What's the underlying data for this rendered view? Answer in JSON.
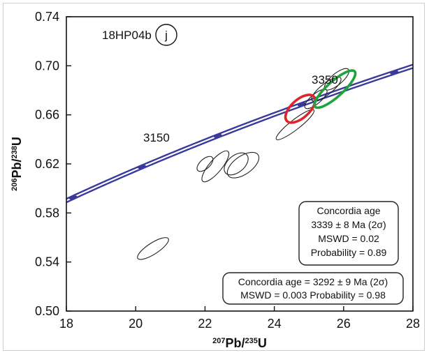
{
  "chart_data": {
    "type": "scatter",
    "sample_label": "18HP04b",
    "panel_letter": "j",
    "xlabel": {
      "sup1": "207",
      "main1": "Pb/",
      "sup2": "235",
      "main2": "U"
    },
    "ylabel": {
      "sup1": "206",
      "main1": "Pb/",
      "sup2": "238",
      "main2": "U"
    },
    "xlim": [
      18,
      28
    ],
    "ylim": [
      0.5,
      0.74
    ],
    "x_ticks": [
      "18",
      "20",
      "22",
      "24",
      "26",
      "28"
    ],
    "y_ticks": [
      "0.50",
      "0.54",
      "0.58",
      "0.62",
      "0.66",
      "0.70",
      "0.74"
    ],
    "concordia_age_labels": [
      "3150",
      "3350"
    ],
    "concordia_color": "#3a3a9c",
    "ellipses": [
      {
        "x": 20.5,
        "y": 0.551,
        "group": "black"
      },
      {
        "x": 22.0,
        "y": 0.62,
        "group": "black"
      },
      {
        "x": 22.3,
        "y": 0.618,
        "group": "black"
      },
      {
        "x": 22.9,
        "y": 0.62,
        "group": "black"
      },
      {
        "x": 23.1,
        "y": 0.619,
        "group": "black"
      },
      {
        "x": 24.6,
        "y": 0.652,
        "group": "black"
      },
      {
        "x": 25.2,
        "y": 0.673,
        "group": "black"
      },
      {
        "x": 25.5,
        "y": 0.681,
        "group": "black"
      },
      {
        "x": 25.8,
        "y": 0.689,
        "group": "black"
      },
      {
        "x": 24.75,
        "y": 0.665,
        "group": "red"
      },
      {
        "x": 25.75,
        "y": 0.681,
        "group": "green"
      }
    ],
    "group_colors": {
      "black": "#222222",
      "red": "#e0242b",
      "green": "#1fa33a"
    },
    "box_upper": {
      "line1": "Concordia age",
      "line2": "3339 ± 8 Ma (2σ)",
      "line3": "MSWD = 0.02",
      "line4": "Probability = 0.89"
    },
    "box_lower": {
      "line1": "Concordia age = 3292 ± 9 Ma (2σ)",
      "line2": "MSWD = 0.003 Probability = 0.98"
    }
  }
}
